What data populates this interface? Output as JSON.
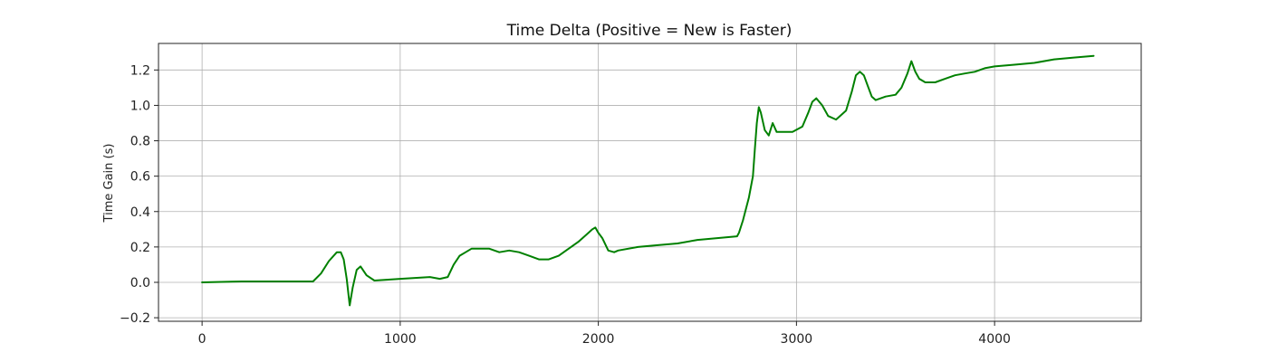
{
  "chart_data": {
    "type": "line",
    "title": "Time Delta (Positive = New is Faster)",
    "xlabel": "",
    "ylabel": "Time Gain (s)",
    "xlim": [
      -220,
      4740
    ],
    "ylim": [
      -0.22,
      1.35
    ],
    "x_ticks": [
      0,
      1000,
      2000,
      3000,
      4000
    ],
    "x_tick_labels": [
      "0",
      "1000",
      "2000",
      "3000",
      "4000"
    ],
    "y_ticks": [
      -0.2,
      0.0,
      0.2,
      0.4,
      0.6,
      0.8,
      1.0,
      1.2
    ],
    "y_tick_labels": [
      "−0.2",
      "0.0",
      "0.2",
      "0.4",
      "0.6",
      "0.8",
      "1.0",
      "1.2"
    ],
    "grid": true,
    "line_color": "#008000",
    "series": [
      {
        "x": [
          0,
          200,
          400,
          560,
          600,
          640,
          680,
          700,
          715,
          730,
          745,
          760,
          780,
          800,
          830,
          870,
          1000,
          1150,
          1200,
          1240,
          1270,
          1300,
          1330,
          1360,
          1400,
          1450,
          1500,
          1550,
          1600,
          1650,
          1700,
          1750,
          1800,
          1850,
          1900,
          1940,
          1970,
          1985,
          2000,
          2020,
          2050,
          2080,
          2100,
          2200,
          2300,
          2400,
          2500,
          2600,
          2700,
          2710,
          2730,
          2760,
          2780,
          2790,
          2800,
          2810,
          2820,
          2840,
          2860,
          2880,
          2900,
          2940,
          2980,
          3030,
          3060,
          3080,
          3100,
          3130,
          3160,
          3200,
          3250,
          3280,
          3300,
          3320,
          3340,
          3360,
          3380,
          3400,
          3450,
          3500,
          3530,
          3560,
          3580,
          3600,
          3620,
          3650,
          3700,
          3750,
          3800,
          3850,
          3900,
          3950,
          4000,
          4100,
          4200,
          4300,
          4400,
          4500
        ],
        "y": [
          0.0,
          0.005,
          0.005,
          0.005,
          0.05,
          0.12,
          0.17,
          0.17,
          0.13,
          0.02,
          -0.13,
          -0.03,
          0.07,
          0.09,
          0.04,
          0.01,
          0.02,
          0.03,
          0.02,
          0.03,
          0.1,
          0.15,
          0.17,
          0.19,
          0.19,
          0.19,
          0.17,
          0.18,
          0.17,
          0.15,
          0.13,
          0.13,
          0.15,
          0.19,
          0.23,
          0.27,
          0.3,
          0.31,
          0.28,
          0.25,
          0.18,
          0.17,
          0.18,
          0.2,
          0.21,
          0.22,
          0.24,
          0.25,
          0.26,
          0.28,
          0.35,
          0.48,
          0.6,
          0.75,
          0.9,
          0.99,
          0.96,
          0.86,
          0.83,
          0.9,
          0.85,
          0.85,
          0.85,
          0.88,
          0.96,
          1.02,
          1.04,
          1.0,
          0.94,
          0.92,
          0.97,
          1.08,
          1.17,
          1.19,
          1.17,
          1.11,
          1.05,
          1.03,
          1.05,
          1.06,
          1.1,
          1.18,
          1.25,
          1.19,
          1.15,
          1.13,
          1.13,
          1.15,
          1.17,
          1.18,
          1.19,
          1.21,
          1.22,
          1.23,
          1.24,
          1.26,
          1.27,
          1.28
        ]
      }
    ]
  }
}
